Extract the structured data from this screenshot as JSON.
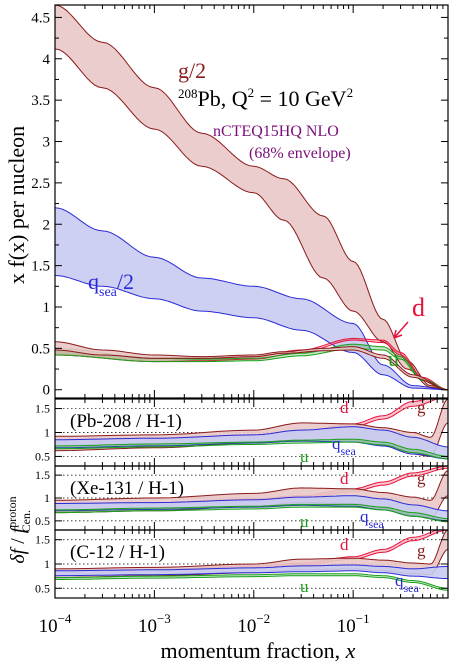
{
  "chart_data": [
    {
      "type": "area",
      "ylabel": "x f(x) per nucleon",
      "xscale": "log",
      "xlim": [
        0.0001,
        0.9
      ],
      "ylim": [
        -0.1,
        4.65
      ],
      "yticks": [
        "0",
        "0.5",
        "1",
        "1.5",
        "2",
        "2.5",
        "3",
        "3.5",
        "4",
        "4.5"
      ],
      "title_nucleus": "208Pb, Q",
      "title_super": "2",
      "title_eq": " = 10 GeV",
      "title_unit_super": "2",
      "subtitle": "nCTEQ15HQ NLO",
      "subtitle2": "(68% envelope)",
      "series": [
        {
          "name": "g/2",
          "color": "#8b1a1a",
          "fill": "#e8c8c6",
          "x": [
            0.0001,
            0.0003,
            0.001,
            0.003,
            0.01,
            0.02,
            0.05,
            0.1,
            0.2,
            0.35,
            0.6,
            0.9
          ],
          "upper": [
            4.65,
            4.2,
            3.65,
            3.1,
            2.7,
            2.55,
            2.1,
            1.55,
            0.85,
            0.35,
            0.05,
            0.0
          ],
          "lower": [
            4.12,
            3.65,
            3.15,
            2.7,
            2.38,
            2.05,
            1.35,
            0.95,
            0.58,
            0.25,
            0.03,
            0.0
          ]
        },
        {
          "name": "q",
          "sub": "sea",
          "suffix": "/2",
          "color": "#2b2bd6",
          "fill": "#c8cbf2",
          "x": [
            0.0001,
            0.0003,
            0.001,
            0.003,
            0.01,
            0.03,
            0.1,
            0.2,
            0.4,
            0.9
          ],
          "upper": [
            2.2,
            1.92,
            1.6,
            1.35,
            1.25,
            1.1,
            0.8,
            0.3,
            0.05,
            0.0
          ],
          "lower": [
            1.38,
            1.25,
            1.1,
            0.95,
            0.87,
            0.72,
            0.45,
            0.18,
            0.02,
            0.0
          ]
        },
        {
          "name": "d",
          "color": "#e8123c",
          "x": [
            0.0001,
            0.001,
            0.003,
            0.01,
            0.03,
            0.1,
            0.2,
            0.3,
            0.5,
            0.9
          ],
          "upper": [
            0.5,
            0.38,
            0.38,
            0.4,
            0.48,
            0.62,
            0.6,
            0.45,
            0.15,
            0.0
          ],
          "lower": [
            0.42,
            0.34,
            0.35,
            0.37,
            0.45,
            0.6,
            0.57,
            0.42,
            0.13,
            0.0
          ]
        },
        {
          "name": "u",
          "color": "#1aa01a",
          "x": [
            0.0001,
            0.001,
            0.003,
            0.01,
            0.03,
            0.1,
            0.2,
            0.3,
            0.5,
            0.9
          ],
          "upper": [
            0.5,
            0.38,
            0.37,
            0.38,
            0.44,
            0.55,
            0.52,
            0.4,
            0.13,
            0.0
          ],
          "lower": [
            0.42,
            0.34,
            0.34,
            0.35,
            0.41,
            0.5,
            0.48,
            0.37,
            0.11,
            0.0
          ]
        },
        {
          "name": "g_lower",
          "color": "#8b1a1a",
          "fill": "#e8c8c6",
          "x": [
            0.0001,
            0.0003,
            0.001,
            0.003,
            0.01,
            0.02,
            0.05,
            0.1,
            0.2,
            0.4,
            0.9
          ],
          "upper": [
            0.58,
            0.48,
            0.42,
            0.4,
            0.42,
            0.46,
            0.5,
            0.52,
            0.42,
            0.18,
            0.0
          ],
          "lower": [
            0.48,
            0.42,
            0.38,
            0.38,
            0.4,
            0.44,
            0.47,
            0.48,
            0.38,
            0.15,
            0.0
          ]
        }
      ]
    },
    {
      "type": "line",
      "label": "(Pb-208 / H-1)",
      "ylim": [
        0.3,
        1.7
      ],
      "yticks": [
        "0.5",
        "1",
        "1.5"
      ],
      "series": [
        {
          "name": "d",
          "color": "#e8123c",
          "x": [
            0.0001,
            0.001,
            0.01,
            0.03,
            0.1,
            0.2,
            0.4,
            0.9
          ],
          "upper": [
            0.82,
            0.88,
            0.95,
            1.02,
            1.18,
            1.35,
            1.65,
            1.8
          ],
          "lower": [
            0.78,
            0.84,
            0.92,
            0.98,
            1.12,
            1.28,
            1.55,
            1.75
          ]
        },
        {
          "name": "g",
          "color": "#8b1a1a",
          "fill": "#e8c8c6",
          "x": [
            0.0001,
            0.001,
            0.01,
            0.03,
            0.1,
            0.2,
            0.4,
            0.6,
            0.9
          ],
          "upper": [
            0.92,
            0.95,
            1.05,
            1.2,
            1.18,
            1.1,
            1.0,
            0.9,
            1.7
          ],
          "lower": [
            0.62,
            0.68,
            0.78,
            0.85,
            0.85,
            0.72,
            0.55,
            0.5,
            1.2
          ]
        },
        {
          "name": "q",
          "sub": "sea",
          "color": "#2b2bd6",
          "fill": "#c8cbf2",
          "x": [
            0.0001,
            0.001,
            0.01,
            0.03,
            0.1,
            0.2,
            0.4,
            0.9
          ],
          "upper": [
            0.85,
            0.88,
            0.95,
            1.05,
            1.12,
            1.05,
            0.9,
            0.7
          ],
          "lower": [
            0.68,
            0.72,
            0.78,
            0.82,
            0.8,
            0.72,
            0.55,
            0.45
          ]
        },
        {
          "name": "u",
          "color": "#1aa01a",
          "x": [
            0.0001,
            0.001,
            0.01,
            0.03,
            0.1,
            0.2,
            0.4,
            0.9
          ],
          "upper": [
            0.72,
            0.76,
            0.8,
            0.84,
            0.86,
            0.8,
            0.65,
            0.5
          ],
          "lower": [
            0.66,
            0.7,
            0.75,
            0.78,
            0.8,
            0.74,
            0.58,
            0.45
          ]
        }
      ]
    },
    {
      "type": "line",
      "label": "(Xe-131 / H-1)",
      "ylim": [
        0.3,
        1.7
      ],
      "yticks": [
        "0.5",
        "1",
        "1.5"
      ],
      "series": [
        {
          "name": "d",
          "color": "#e8123c",
          "x": [
            0.0001,
            0.001,
            0.01,
            0.03,
            0.1,
            0.2,
            0.4,
            0.9
          ],
          "upper": [
            0.85,
            0.9,
            0.98,
            1.05,
            1.2,
            1.35,
            1.55,
            1.7
          ],
          "lower": [
            0.8,
            0.86,
            0.94,
            1.0,
            1.14,
            1.28,
            1.48,
            1.65
          ]
        },
        {
          "name": "g",
          "color": "#8b1a1a",
          "fill": "#e8c8c6",
          "x": [
            0.0001,
            0.001,
            0.01,
            0.03,
            0.1,
            0.2,
            0.4,
            0.6,
            0.9
          ],
          "upper": [
            0.95,
            1.0,
            1.1,
            1.22,
            1.2,
            1.12,
            1.02,
            0.95,
            1.6
          ],
          "lower": [
            0.68,
            0.72,
            0.82,
            0.9,
            0.88,
            0.78,
            0.62,
            0.55,
            1.05
          ]
        },
        {
          "name": "q",
          "sub": "sea",
          "color": "#2b2bd6",
          "fill": "#c8cbf2",
          "x": [
            0.0001,
            0.001,
            0.01,
            0.03,
            0.1,
            0.2,
            0.4,
            0.9
          ],
          "upper": [
            0.88,
            0.9,
            0.96,
            1.02,
            1.05,
            0.98,
            0.85,
            0.72
          ],
          "lower": [
            0.72,
            0.75,
            0.8,
            0.84,
            0.82,
            0.74,
            0.6,
            0.5
          ]
        },
        {
          "name": "u",
          "color": "#1aa01a",
          "x": [
            0.0001,
            0.001,
            0.01,
            0.03,
            0.1,
            0.2,
            0.4,
            0.9
          ],
          "upper": [
            0.74,
            0.78,
            0.82,
            0.86,
            0.86,
            0.8,
            0.68,
            0.55
          ],
          "lower": [
            0.68,
            0.72,
            0.76,
            0.8,
            0.8,
            0.74,
            0.6,
            0.48
          ]
        }
      ]
    },
    {
      "type": "line",
      "label": "(C-12 / H-1)",
      "ylim": [
        0.3,
        1.7
      ],
      "yticks": [
        "0.5",
        "1",
        "1.5"
      ],
      "series": [
        {
          "name": "d",
          "color": "#e8123c",
          "x": [
            0.0001,
            0.001,
            0.01,
            0.03,
            0.1,
            0.2,
            0.4,
            0.9
          ],
          "upper": [
            0.82,
            0.88,
            0.96,
            1.02,
            1.15,
            1.3,
            1.55,
            1.75
          ],
          "lower": [
            0.78,
            0.84,
            0.92,
            0.98,
            1.1,
            1.24,
            1.48,
            1.7
          ]
        },
        {
          "name": "g",
          "color": "#8b1a1a",
          "fill": "#e8c8c6",
          "x": [
            0.0001,
            0.001,
            0.01,
            0.03,
            0.1,
            0.2,
            0.4,
            0.6,
            0.9
          ],
          "upper": [
            0.9,
            0.93,
            1.0,
            1.1,
            1.12,
            1.08,
            1.02,
            1.0,
            1.7
          ],
          "lower": [
            0.72,
            0.76,
            0.82,
            0.88,
            0.9,
            0.86,
            0.8,
            0.78,
            1.3
          ]
        },
        {
          "name": "q",
          "sub": "sea",
          "color": "#2b2bd6",
          "fill": "#c8cbf2",
          "x": [
            0.0001,
            0.001,
            0.01,
            0.03,
            0.1,
            0.2,
            0.4,
            0.9
          ],
          "upper": [
            0.86,
            0.88,
            0.92,
            0.96,
            0.98,
            0.95,
            0.9,
            0.95
          ],
          "lower": [
            0.76,
            0.78,
            0.82,
            0.84,
            0.86,
            0.82,
            0.75,
            0.7
          ]
        },
        {
          "name": "u",
          "color": "#1aa01a",
          "x": [
            0.0001,
            0.001,
            0.01,
            0.03,
            0.1,
            0.2,
            0.4,
            0.9
          ],
          "upper": [
            0.72,
            0.75,
            0.78,
            0.8,
            0.8,
            0.76,
            0.66,
            0.5
          ],
          "lower": [
            0.68,
            0.71,
            0.74,
            0.76,
            0.76,
            0.72,
            0.62,
            0.46
          ]
        }
      ]
    }
  ],
  "xaxis": {
    "label": "momentum fraction, ",
    "label_var": "x",
    "ticks": [
      {
        "base": "10",
        "exp": "−4",
        "value": 0.0001
      },
      {
        "base": "10",
        "exp": "−3",
        "value": 0.001
      },
      {
        "base": "10",
        "exp": "−2",
        "value": 0.01
      },
      {
        "base": "10",
        "exp": "−1",
        "value": 0.1
      }
    ]
  },
  "ratio_ylabel": {
    "delta": "δf",
    "slash": " / ",
    "f": "f",
    "sup": "proton",
    "sub": "Cen."
  }
}
